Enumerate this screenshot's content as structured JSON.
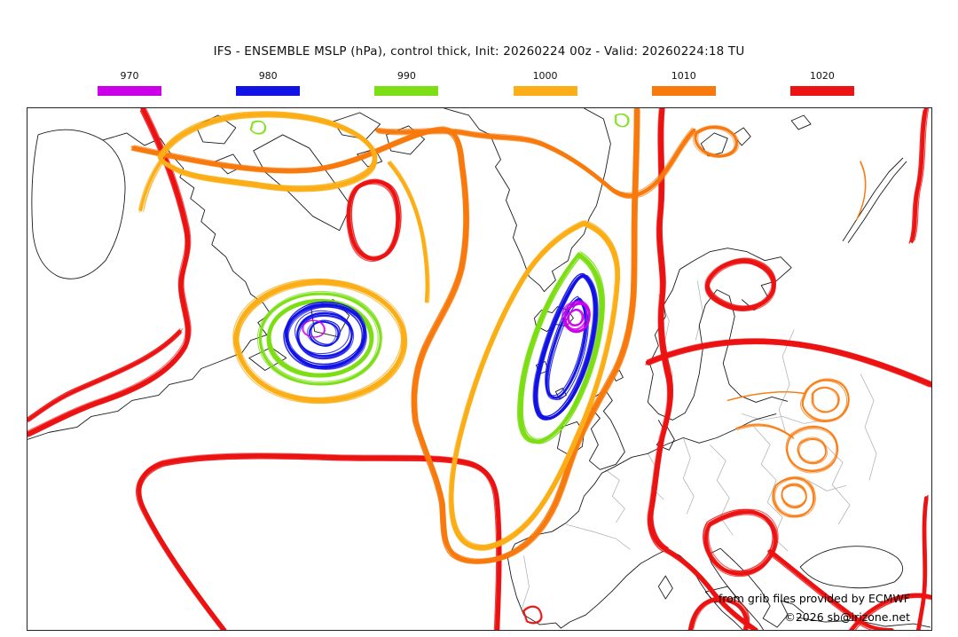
{
  "header": {
    "title": "IFS - ENSEMBLE MSLP (hPa), control thick, Init: 20260224 00z - Valid: 20260224:18 TU"
  },
  "legend": {
    "items": [
      {
        "label": "970",
        "color": "#CC00E8"
      },
      {
        "label": "980",
        "color": "#1212E6"
      },
      {
        "label": "990",
        "color": "#7CDE14"
      },
      {
        "label": "1000",
        "color": "#FBAE17"
      },
      {
        "label": "1010",
        "color": "#F87A0E"
      },
      {
        "label": "1020",
        "color": "#EC1313"
      }
    ]
  },
  "map": {
    "attribution_line1": "from grib files provided by ECMWF",
    "attribution_line2": "©2026 sb@irizone.net",
    "coast_color": "#1a1a1a",
    "border_color": "#b5b5b5"
  },
  "chart_data": {
    "type": "contour",
    "subtype": "ensemble spaghetti isobar map",
    "model": "IFS ENSEMBLE, control thick",
    "variable": "MSLP (hPa)",
    "init": "20260224 00z",
    "valid": "20260224:18 TU",
    "region": "North Atlantic and Europe",
    "levels_hpa": [
      970,
      980,
      990,
      1000,
      1010,
      1020
    ],
    "level_colors": {
      "970": "#CC00E8",
      "980": "#1212E6",
      "990": "#7CDE14",
      "1000": "#FBAE17",
      "1010": "#F87A0E",
      "1020": "#EC1313"
    },
    "legend_position": "top, horizontal row of color bars",
    "grid": false,
    "features": [
      {
        "type": "low",
        "location": "east of Newfoundland / Gulf of St. Lawrence",
        "closed_levels_hpa": [
          1000,
          990,
          980,
          970
        ]
      },
      {
        "type": "low",
        "location": "southeast of Iceland / Norwegian Sea",
        "closed_levels_hpa": [
          1000,
          990,
          980,
          970
        ]
      },
      {
        "type": "high",
        "location": "subtropical Atlantic (Azores ridge)",
        "bounding_level_hpa": 1020
      },
      {
        "type": "high-ish ridge",
        "location": "central Europe to Scandinavia",
        "bounding_level_hpa": 1020
      },
      {
        "type": "weak lows",
        "location": "eastern Europe / Black Sea area",
        "bounding_level_hpa": 1010
      }
    ]
  }
}
